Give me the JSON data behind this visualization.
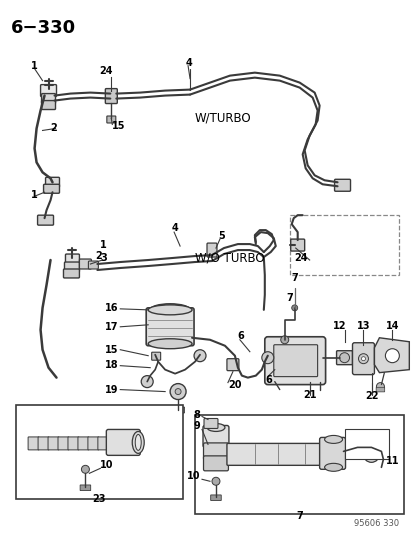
{
  "title": "6−330",
  "footer": "95606 330",
  "bg": "#ffffff",
  "lc": "#3a3a3a",
  "tc": "#000000",
  "fig_w": 4.14,
  "fig_h": 5.33,
  "dpi": 100,
  "w_turbo": "W/TURBO",
  "wo_turbo": "W/O TURBO"
}
